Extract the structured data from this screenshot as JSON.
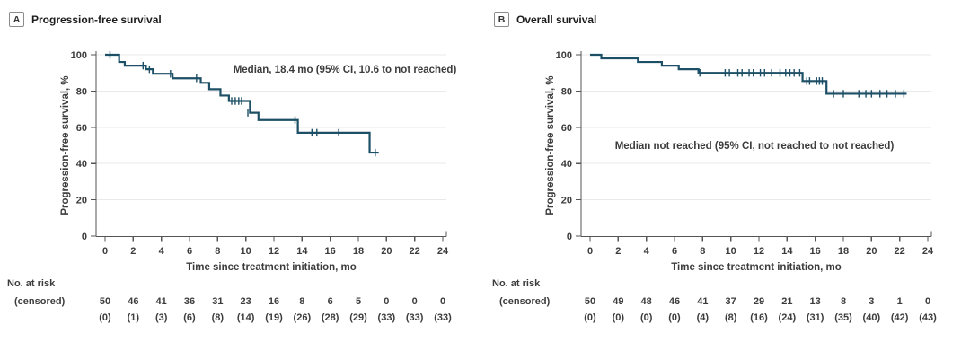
{
  "figure": {
    "at_risk_header": "No. at risk",
    "censored_header": "(censored)"
  },
  "chart_data": [
    {
      "type": "line",
      "subtype": "kaplan-meier-step",
      "panel_letter": "A",
      "title": "Progression-free survival",
      "annotation": "Median, 18.4 mo (95% CI, 10.6 to not reached)",
      "xlabel": "Time since treatment initiation, mo",
      "ylabel": "Progression-free survival, %",
      "xlim": [
        0,
        24
      ],
      "ylim": [
        0,
        100
      ],
      "xticks": [
        "0",
        "2",
        "4",
        "6",
        "8",
        "10",
        "12",
        "14",
        "16",
        "18",
        "20",
        "22",
        "24"
      ],
      "yticks": [
        "0",
        "20",
        "40",
        "60",
        "80",
        "100"
      ],
      "grid": "horizontal",
      "legend": "none",
      "line_color": "#1d4f66",
      "steps": [
        [
          0,
          100
        ],
        [
          1.0,
          96
        ],
        [
          1.4,
          94
        ],
        [
          2.9,
          92
        ],
        [
          3.4,
          89.5
        ],
        [
          4.8,
          87
        ],
        [
          6.8,
          84.5
        ],
        [
          7.4,
          81
        ],
        [
          8.2,
          77.5
        ],
        [
          8.8,
          74.5
        ],
        [
          10.3,
          68
        ],
        [
          10.9,
          64
        ],
        [
          13.7,
          57
        ],
        [
          18.8,
          46
        ]
      ],
      "curve_end": 19.45,
      "censor_marks": [
        [
          0.35,
          100
        ],
        [
          2.7,
          94
        ],
        [
          3.15,
          92
        ],
        [
          4.65,
          89.5
        ],
        [
          6.5,
          87
        ],
        [
          9.0,
          74.5
        ],
        [
          9.25,
          74.5
        ],
        [
          9.5,
          74.5
        ],
        [
          9.7,
          74.5
        ],
        [
          10.15,
          68
        ],
        [
          13.5,
          64
        ],
        [
          14.7,
          57
        ],
        [
          15.05,
          57
        ],
        [
          16.6,
          57
        ],
        [
          19.2,
          46
        ]
      ],
      "at_risk": [
        "50",
        "46",
        "41",
        "36",
        "31",
        "23",
        "16",
        "8",
        "6",
        "5",
        "0",
        "0",
        "0"
      ],
      "censored": [
        "(0)",
        "(1)",
        "(3)",
        "(6)",
        "(8)",
        "(14)",
        "(19)",
        "(26)",
        "(28)",
        "(29)",
        "(33)",
        "(33)",
        "(33)"
      ]
    },
    {
      "type": "line",
      "subtype": "kaplan-meier-step",
      "panel_letter": "B",
      "title": "Overall survival",
      "annotation": "Median not reached (95% CI, not reached to not reached)",
      "xlabel": "Time since treatment initiation, mo",
      "ylabel": "Progression-free survival, %",
      "xlim": [
        0,
        24
      ],
      "ylim": [
        0,
        100
      ],
      "xticks": [
        "0",
        "2",
        "4",
        "6",
        "8",
        "10",
        "12",
        "14",
        "16",
        "18",
        "20",
        "22",
        "24"
      ],
      "yticks": [
        "0",
        "20",
        "40",
        "60",
        "80",
        "100"
      ],
      "grid": "horizontal",
      "legend": "none",
      "line_color": "#1d4f66",
      "steps": [
        [
          0,
          100
        ],
        [
          0.8,
          98
        ],
        [
          3.4,
          96
        ],
        [
          5.1,
          94
        ],
        [
          6.3,
          92
        ],
        [
          7.7,
          90
        ],
        [
          15.1,
          85.5
        ],
        [
          16.8,
          78.5
        ]
      ],
      "curve_end": 22.5,
      "censor_marks": [
        [
          7.8,
          90
        ],
        [
          9.6,
          90
        ],
        [
          9.9,
          90
        ],
        [
          10.5,
          90
        ],
        [
          10.8,
          90
        ],
        [
          11.3,
          90
        ],
        [
          11.6,
          90
        ],
        [
          12.1,
          90
        ],
        [
          12.4,
          90
        ],
        [
          12.9,
          90
        ],
        [
          13.5,
          90
        ],
        [
          13.9,
          90
        ],
        [
          14.2,
          90
        ],
        [
          14.5,
          90
        ],
        [
          14.9,
          90
        ],
        [
          15.4,
          85.5
        ],
        [
          15.6,
          85.5
        ],
        [
          16.1,
          85.5
        ],
        [
          16.3,
          85.5
        ],
        [
          16.5,
          85.5
        ],
        [
          17.3,
          78.5
        ],
        [
          18.0,
          78.5
        ],
        [
          19.1,
          78.5
        ],
        [
          19.6,
          78.5
        ],
        [
          20.0,
          78.5
        ],
        [
          20.6,
          78.5
        ],
        [
          21.1,
          78.5
        ],
        [
          21.7,
          78.5
        ],
        [
          22.3,
          78.5
        ]
      ],
      "at_risk": [
        "50",
        "49",
        "48",
        "46",
        "41",
        "37",
        "29",
        "21",
        "13",
        "8",
        "3",
        "1",
        "0"
      ],
      "censored": [
        "(0)",
        "(0)",
        "(0)",
        "(0)",
        "(4)",
        "(8)",
        "(16)",
        "(24)",
        "(31)",
        "(35)",
        "(40)",
        "(42)",
        "(43)"
      ]
    }
  ]
}
